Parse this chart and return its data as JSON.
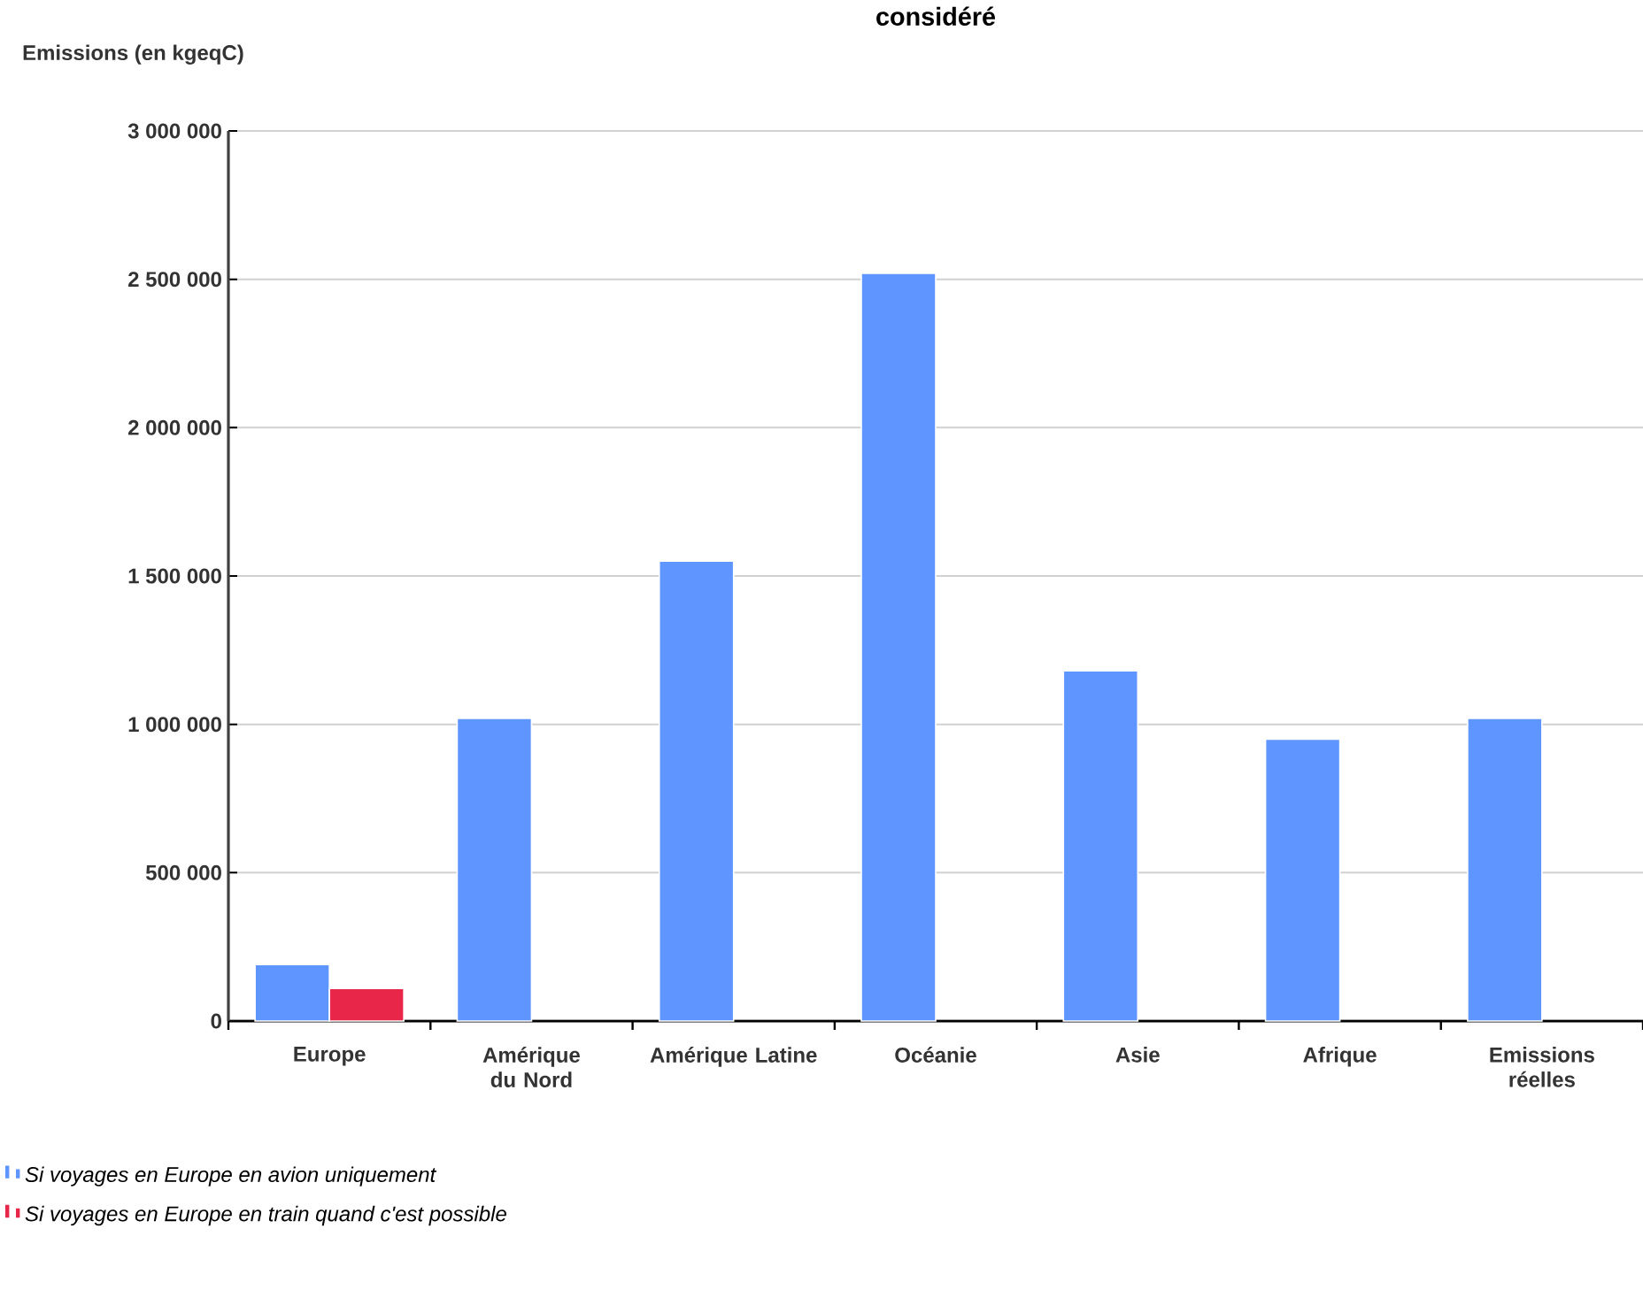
{
  "chart_data": {
    "type": "bar",
    "title": "considéré",
    "ylabel": "Emissions (en kgeqC)",
    "categories": [
      "Europe",
      "Amérique du Nord",
      "Amérique Latine",
      "Océanie",
      "Asie",
      "Afrique",
      "Emissions réelles"
    ],
    "series": [
      {
        "name": "Si voyages en Europe en avion uniquement",
        "color": "#5e95ff",
        "values": [
          190000,
          1020000,
          1550000,
          2520000,
          1180000,
          950000,
          1020000
        ]
      },
      {
        "name": "Si voyages en Europe en train quand c'est possible",
        "color": "#e8264a",
        "values": [
          110000,
          null,
          null,
          null,
          null,
          null,
          null
        ]
      }
    ],
    "ylim": [
      0,
      3000000
    ],
    "yticks": [
      {
        "value": 0,
        "label": "0"
      },
      {
        "value": 500000,
        "label": "500 000"
      },
      {
        "value": 1000000,
        "label": "1 000 000"
      },
      {
        "value": 1500000,
        "label": "1 500 000"
      },
      {
        "value": 2000000,
        "label": "2 000 000"
      },
      {
        "value": 2500000,
        "label": "2 500 000"
      },
      {
        "value": 3000000,
        "label": "3 000 000"
      }
    ],
    "grid": "y",
    "legend": "bottom"
  }
}
